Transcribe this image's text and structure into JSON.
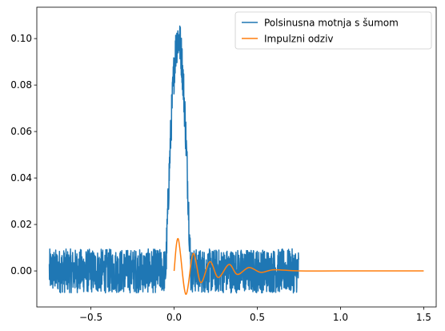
{
  "chart_data": {
    "type": "line",
    "title": "",
    "xlabel": "",
    "ylabel": "",
    "xlim": [
      -0.825,
      1.575
    ],
    "ylim": [
      -0.0155,
      0.1135
    ],
    "grid": false,
    "legend_position": "top-right",
    "x_ticks": [
      -0.5,
      0.0,
      0.5,
      1.0,
      1.5
    ],
    "x_tick_labels": [
      "−0.5",
      "0.0",
      "0.5",
      "1.0",
      "1.5"
    ],
    "y_ticks": [
      0.0,
      0.02,
      0.04,
      0.06,
      0.08,
      0.1
    ],
    "y_tick_labels": [
      "0.00",
      "0.02",
      "0.04",
      "0.06",
      "0.08",
      "0.10"
    ],
    "series": [
      {
        "name": "Polsinusna motnja s šumom",
        "color": "#1f77b4",
        "x_range": [
          -0.75,
          0.75
        ],
        "noise_amplitude": 0.0095,
        "pulse": {
          "start": -0.05,
          "end": 0.1,
          "peak": 0.1
        },
        "points": [
          [
            -0.75,
            0.009
          ],
          [
            -0.7,
            -0.008
          ],
          [
            -0.5,
            0.009
          ],
          [
            -0.3,
            -0.009
          ],
          [
            -0.06,
            -0.007
          ],
          [
            -0.05,
            0.0
          ],
          [
            0.0,
            0.095
          ],
          [
            0.01,
            0.109
          ],
          [
            0.025,
            0.1
          ],
          [
            0.05,
            0.05
          ],
          [
            0.1,
            0.0
          ],
          [
            0.3,
            0.009
          ],
          [
            0.5,
            -0.009
          ],
          [
            0.75,
            0.009
          ],
          [
            0.75,
            -0.007
          ]
        ]
      },
      {
        "name": "Impulzni odziv",
        "color": "#ff7f0e",
        "points": [
          [
            0.0,
            0.0
          ],
          [
            0.025,
            0.0138
          ],
          [
            0.07,
            -0.01
          ],
          [
            0.115,
            0.0075
          ],
          [
            0.16,
            -0.005
          ],
          [
            0.215,
            0.004
          ],
          [
            0.265,
            -0.0028
          ],
          [
            0.33,
            0.0028
          ],
          [
            0.38,
            -0.0015
          ],
          [
            0.45,
            0.0015
          ],
          [
            0.52,
            -0.0006
          ],
          [
            0.6,
            0.0005
          ],
          [
            0.75,
            0.0
          ],
          [
            1.0,
            0.0
          ],
          [
            1.5,
            0.0
          ]
        ]
      }
    ]
  }
}
